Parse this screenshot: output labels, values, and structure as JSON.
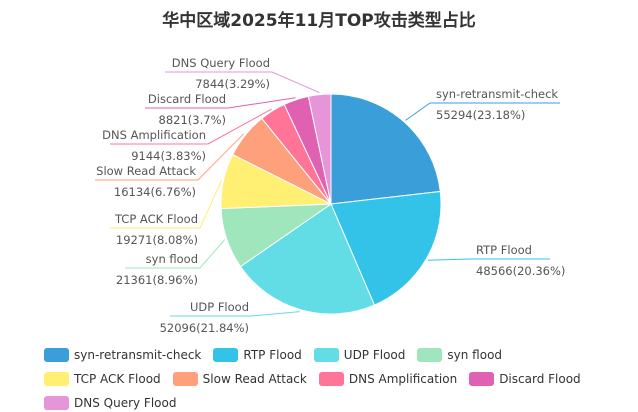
{
  "chart_data": {
    "type": "pie",
    "title": "华中区域2025年11月TOP攻击类型占比",
    "slices": [
      {
        "name": "syn-retransmit-check",
        "value": 55294,
        "percent": "23.18%",
        "color": "#3a9fd8",
        "label_side": "right"
      },
      {
        "name": "RTP Flood",
        "value": 48566,
        "percent": "20.36%",
        "color": "#34c3e8",
        "label_side": "right"
      },
      {
        "name": "UDP Flood",
        "value": 52096,
        "percent": "21.84%",
        "color": "#62dde6",
        "label_side": "left"
      },
      {
        "name": "syn flood",
        "value": 21361,
        "percent": "8.96%",
        "color": "#9fe6bd",
        "label_side": "left"
      },
      {
        "name": "TCP ACK Flood",
        "value": 19271,
        "percent": "8.08%",
        "color": "#ffef72",
        "label_side": "left"
      },
      {
        "name": "Slow Read Attack",
        "value": 16134,
        "percent": "6.76%",
        "color": "#ffa07d",
        "label_side": "left"
      },
      {
        "name": "DNS Amplification",
        "value": 9144,
        "percent": "3.83%",
        "color": "#ff7497",
        "label_side": "left"
      },
      {
        "name": "Discard Flood",
        "value": 8821,
        "percent": "3.7%",
        "color": "#e060b1",
        "label_side": "left"
      },
      {
        "name": "DNS Query Flood",
        "value": 7844,
        "percent": "3.29%",
        "color": "#e595d8",
        "label_side": "left"
      }
    ],
    "legend_position": "bottom"
  }
}
